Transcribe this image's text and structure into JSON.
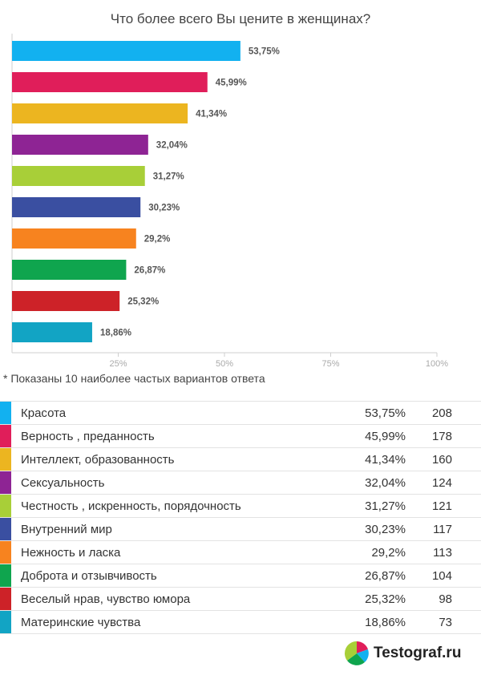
{
  "title": "Что более всего Вы цените в женщинах?",
  "footnote": "* Показаны 10 наиболее частых вариантов ответа",
  "brand": {
    "name": "Testograf.ru",
    "logo_icon": "pie-chart-icon"
  },
  "chart_data": {
    "type": "bar",
    "orientation": "horizontal",
    "title": "Что более всего Вы цените в женщинах?",
    "categories": [
      "Красота",
      "Верность , преданность",
      "Интеллект, образованность",
      "Сексуальность",
      "Честность , искренность, порядочность",
      "Внутренний мир",
      "Нежность и ласка",
      "Доброта и отзывчивость",
      "Веселый нрав, чувство юмора",
      "Материнские чувства"
    ],
    "values": [
      53.75,
      45.99,
      41.34,
      32.04,
      31.27,
      30.23,
      29.2,
      26.87,
      25.32,
      18.86
    ],
    "value_labels": [
      "53,75%",
      "45,99%",
      "41,34%",
      "32,04%",
      "31,27%",
      "30,23%",
      "29,2%",
      "26,87%",
      "25,32%",
      "18,86%"
    ],
    "colors": [
      "#12B1F0",
      "#E01E5A",
      "#ECB520",
      "#8E2494",
      "#A8CF38",
      "#3A4FA1",
      "#F7831F",
      "#0FA54E",
      "#CD2228",
      "#12A4C4"
    ],
    "xlim": [
      0,
      100
    ],
    "xticks": [
      25,
      50,
      75,
      100
    ],
    "xtick_labels": [
      "25%",
      "50%",
      "75%",
      "100%"
    ],
    "grid": true
  },
  "table": {
    "rows": [
      {
        "label": "Красота",
        "pct": "53,75%",
        "count": "208"
      },
      {
        "label": "Верность , преданность",
        "pct": "45,99%",
        "count": "178"
      },
      {
        "label": "Интеллект, образованность",
        "pct": "41,34%",
        "count": "160"
      },
      {
        "label": "Сексуальность",
        "pct": "32,04%",
        "count": "124"
      },
      {
        "label": "Честность , искренность, порядочность",
        "pct": "31,27%",
        "count": "121"
      },
      {
        "label": "Внутренний мир",
        "pct": "30,23%",
        "count": "117"
      },
      {
        "label": "Нежность и ласка",
        "pct": "29,2%",
        "count": "113"
      },
      {
        "label": "Доброта и отзывчивость",
        "pct": "26,87%",
        "count": "104"
      },
      {
        "label": "Веселый нрав, чувство юмора",
        "pct": "25,32%",
        "count": "98"
      },
      {
        "label": "Материнские чувства",
        "pct": "18,86%",
        "count": "73"
      }
    ]
  }
}
